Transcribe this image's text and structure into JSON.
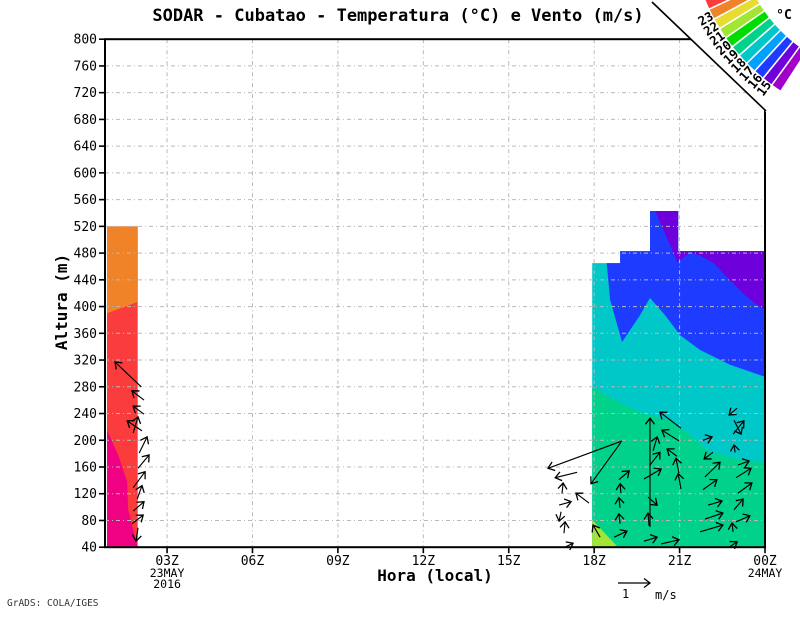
{
  "title": "SODAR - Cubatao - Temperatura (°C) e Vento (m/s)",
  "credit": "GrADS: COLA/IGES",
  "axes": {
    "x_label": "Hora (local)",
    "y_label": "Altura (m)",
    "x_tick_labels": [
      "03Z",
      "06Z",
      "09Z",
      "12Z",
      "15Z",
      "18Z",
      "21Z",
      "00Z"
    ],
    "x_tick_hours": [
      3,
      6,
      9,
      12,
      15,
      18,
      21,
      24
    ],
    "x_grid_hours": [
      3,
      6,
      9,
      12,
      15,
      18,
      21
    ],
    "x_date_labels": [
      {
        "hour": 3,
        "lines": [
          "23MAY",
          "2016"
        ]
      },
      {
        "hour": 24,
        "lines": [
          "24MAY"
        ]
      }
    ],
    "y_tick_values": [
      40,
      80,
      120,
      160,
      200,
      240,
      280,
      320,
      360,
      400,
      440,
      480,
      520,
      560,
      600,
      640,
      680,
      720,
      760,
      800
    ],
    "x_range_hours": [
      0.82,
      24
    ],
    "y_range_m": [
      40,
      800
    ],
    "grid": "dashed-gray"
  },
  "wind_scale": {
    "value": "1",
    "unit": "m/s",
    "reference_ms": 1
  },
  "legend_fan": {
    "unit": "°C",
    "tick_labels": [
      "15",
      "16",
      "17",
      "18",
      "19",
      "20",
      "21",
      "22",
      "23"
    ],
    "colors": [
      "#A000C8",
      "#6E00DC",
      "#1E3CFF",
      "#00A0FF",
      "#00C8C8",
      "#00D28C",
      "#00DC00",
      "#A0E632",
      "#E6DC32",
      "#F08228",
      "#FA3C3C",
      "#F00082"
    ]
  },
  "chart_data": {
    "type": "filled-contour+vectors",
    "title": "SODAR - Cubatao - Temperatura (°C) e Vento (m/s)",
    "xlabel": "Hora (local)",
    "ylabel": "Altura (m)",
    "x_unit": "hour (Z), 23MAY2016 to 24MAY2016",
    "y_unit": "m",
    "xlim": [
      0.82,
      24
    ],
    "ylim": [
      40,
      800
    ],
    "palette": [
      {
        "range": "<15",
        "color": "#A000C8"
      },
      {
        "range": "15-16",
        "color": "#6E00DC"
      },
      {
        "range": "16-17",
        "color": "#1E3CFF"
      },
      {
        "range": "17-18",
        "color": "#00A0FF"
      },
      {
        "range": "18-19",
        "color": "#00C8C8"
      },
      {
        "range": "19-20",
        "color": "#00D28C"
      },
      {
        "range": "20-21",
        "color": "#00DC00"
      },
      {
        "range": "21-22",
        "color": "#A0E632"
      },
      {
        "range": "22-23",
        "color": "#E6DC32"
      },
      {
        "range": "23-24",
        "color": "#F08228"
      },
      {
        "range": "24-25",
        "color": "#FA3C3C"
      },
      {
        "range": ">25",
        "color": "#F00082"
      }
    ],
    "regions": [
      {
        "name": "early-band-red",
        "temp_c": "24-25",
        "color": "#FA3C3C",
        "pts": [
          [
            0.89,
            40
          ],
          [
            0.89,
            520
          ],
          [
            1.97,
            520
          ],
          [
            1.97,
            40
          ]
        ]
      },
      {
        "name": "early-band-orange",
        "temp_c": "23-24",
        "color": "#F08228",
        "pts": [
          [
            0.89,
            520
          ],
          [
            1.97,
            520
          ],
          [
            1.97,
            407
          ],
          [
            0.89,
            390
          ]
        ]
      },
      {
        "name": "early-band-magenta",
        "temp_c": ">25",
        "color": "#F00082",
        "pts": [
          [
            0.89,
            215
          ],
          [
            1.28,
            178
          ],
          [
            1.6,
            138
          ],
          [
            1.63,
            96
          ],
          [
            1.81,
            66
          ],
          [
            1.95,
            43
          ],
          [
            1.97,
            40
          ],
          [
            0.89,
            40
          ]
        ]
      },
      {
        "name": "evening-teal",
        "temp_c": "18-19",
        "color": "#00C8C8",
        "pts": [
          [
            17.93,
            40
          ],
          [
            17.93,
            465
          ],
          [
            18.91,
            465
          ],
          [
            18.91,
            483
          ],
          [
            19.96,
            483
          ],
          [
            19.96,
            543
          ],
          [
            20.95,
            543
          ],
          [
            20.95,
            483
          ],
          [
            24,
            483
          ],
          [
            24,
            40
          ]
        ]
      },
      {
        "name": "evening-blue",
        "temp_c": "16-17",
        "color": "#1E3CFF",
        "pts": [
          [
            18.44,
            465
          ],
          [
            18.91,
            465
          ],
          [
            18.91,
            483
          ],
          [
            19.96,
            483
          ],
          [
            19.96,
            543
          ],
          [
            20.95,
            543
          ],
          [
            20.95,
            483
          ],
          [
            24,
            483
          ],
          [
            24,
            295
          ],
          [
            22.77,
            313
          ],
          [
            21.72,
            335
          ],
          [
            21.02,
            357
          ],
          [
            20.49,
            387
          ],
          [
            19.96,
            413
          ],
          [
            19.61,
            387
          ],
          [
            18.98,
            347
          ],
          [
            18.56,
            410
          ]
        ]
      },
      {
        "name": "evening-purple",
        "temp_c": "15-16",
        "color": "#6E00DC",
        "pts": [
          [
            20.14,
            543
          ],
          [
            20.95,
            543
          ],
          [
            20.95,
            483
          ],
          [
            24,
            483
          ],
          [
            24,
            395
          ],
          [
            23.65,
            405
          ],
          [
            23.3,
            417
          ],
          [
            22.95,
            432
          ],
          [
            22.6,
            447
          ],
          [
            22.2,
            465
          ],
          [
            21.72,
            476
          ],
          [
            21.37,
            482
          ],
          [
            21.05,
            470
          ],
          [
            20.92,
            467
          ]
        ]
      },
      {
        "name": "evening-green",
        "temp_c": "19-20",
        "color": "#00D28C",
        "pts": [
          [
            17.93,
            280
          ],
          [
            18.73,
            260
          ],
          [
            19.61,
            242
          ],
          [
            20.66,
            230
          ],
          [
            21.37,
            208
          ],
          [
            22.07,
            182
          ],
          [
            23.12,
            172
          ],
          [
            24,
            166
          ],
          [
            24,
            40
          ],
          [
            17.93,
            40
          ]
        ]
      },
      {
        "name": "evening-yellowgreen",
        "temp_c": "21-22",
        "color": "#A0E632",
        "pts": [
          [
            17.93,
            81
          ],
          [
            18.84,
            40
          ],
          [
            17.93,
            40
          ]
        ]
      }
    ],
    "wind_vectors": {
      "note": "tail [h,alt] to tip [h,alt]; arrow length ~ speed, 1 m/s reference below axis",
      "segments": [
        [
          2.09,
          280,
          1.17,
          317
        ],
        [
          2.19,
          260,
          1.77,
          274
        ],
        [
          2.19,
          239,
          1.81,
          251
        ],
        [
          2.12,
          214,
          1.6,
          229
        ],
        [
          1.81,
          211,
          1.98,
          235
        ],
        [
          2.02,
          181,
          2.3,
          205
        ],
        [
          1.98,
          158,
          2.37,
          178
        ],
        [
          1.81,
          129,
          2.23,
          153
        ],
        [
          1.95,
          112,
          2.12,
          132
        ],
        [
          1.81,
          94,
          2.19,
          108
        ],
        [
          1.77,
          75,
          2.16,
          88
        ],
        [
          1.98,
          69,
          1.91,
          49
        ],
        [
          18.98,
          199,
          16.38,
          158
        ],
        [
          17.4,
          152,
          16.63,
          144
        ],
        [
          18.94,
          197,
          17.89,
          135
        ],
        [
          16.87,
          120,
          16.91,
          136
        ],
        [
          16.77,
          103,
          17.19,
          108
        ],
        [
          16.84,
          93,
          16.77,
          79
        ],
        [
          16.94,
          61,
          16.98,
          78
        ],
        [
          17.82,
          106,
          17.36,
          121
        ],
        [
          18.21,
          55,
          17.96,
          73
        ],
        [
          16.98,
          40,
          17.26,
          46
        ],
        [
          18.87,
          141,
          19.23,
          154
        ],
        [
          18.94,
          121,
          18.91,
          135
        ],
        [
          18.91,
          99,
          18.87,
          114
        ],
        [
          18.91,
          75,
          18.87,
          90
        ],
        [
          18.7,
          55,
          19.15,
          64
        ],
        [
          19.96,
          70,
          19.96,
          233
        ],
        [
          20.07,
          184,
          20.21,
          205
        ],
        [
          19.96,
          163,
          20.31,
          182
        ],
        [
          19.75,
          142,
          20.35,
          157
        ],
        [
          19.89,
          115,
          20.21,
          103
        ],
        [
          19.93,
          72,
          19.89,
          91
        ],
        [
          19.75,
          49,
          20.21,
          55
        ],
        [
          20.35,
          45,
          20.98,
          51
        ],
        [
          21.05,
          218,
          20.31,
          242
        ],
        [
          20.98,
          199,
          20.38,
          215
        ],
        [
          20.91,
          176,
          20.56,
          187
        ],
        [
          20.98,
          151,
          20.87,
          173
        ],
        [
          21.05,
          127,
          20.95,
          150
        ],
        [
          21.82,
          200,
          22.14,
          205
        ],
        [
          22.17,
          182,
          21.86,
          172
        ],
        [
          21.89,
          145,
          22.42,
          167
        ],
        [
          21.82,
          126,
          22.31,
          141
        ],
        [
          22,
          103,
          22.49,
          109
        ],
        [
          21.89,
          82,
          22.52,
          91
        ],
        [
          21.72,
          63,
          22.52,
          73
        ],
        [
          23.02,
          248,
          22.74,
          238
        ],
        [
          22.91,
          230,
          23.16,
          209
        ],
        [
          22.88,
          209,
          23.26,
          229
        ],
        [
          22.95,
          182,
          22.91,
          193
        ],
        [
          23.05,
          163,
          23.44,
          169
        ],
        [
          22.98,
          144,
          23.51,
          158
        ],
        [
          23.05,
          121,
          23.54,
          136
        ],
        [
          22.91,
          96,
          23.23,
          112
        ],
        [
          22.98,
          78,
          23.47,
          87
        ],
        [
          22.88,
          63,
          22.84,
          76
        ],
        [
          22.74,
          40,
          23.02,
          48
        ]
      ]
    }
  }
}
